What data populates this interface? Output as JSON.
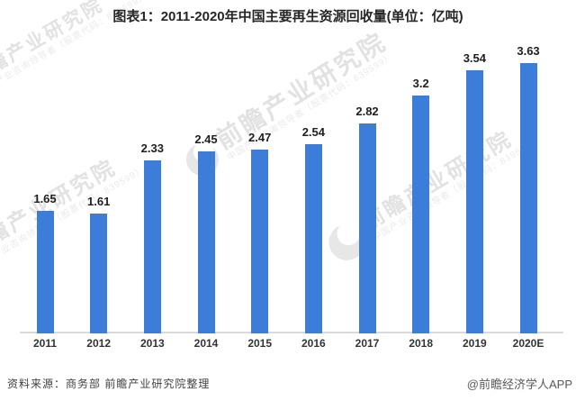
{
  "title": "图表1：2011-2020年中国主要再生资源回收量(单位：亿吨)",
  "chart_data": {
    "type": "bar",
    "title": "图表1：2011-2020年中国主要再生资源回收量(单位：亿吨)",
    "unit": "亿吨",
    "categories": [
      "2011",
      "2012",
      "2013",
      "2014",
      "2015",
      "2016",
      "2017",
      "2018",
      "2019",
      "2020E"
    ],
    "values": [
      1.65,
      1.61,
      2.33,
      2.45,
      2.47,
      2.54,
      2.82,
      3.2,
      3.54,
      3.63
    ],
    "value_labels": [
      "1.65",
      "1.61",
      "2.33",
      "2.45",
      "2.47",
      "2.54",
      "2.82",
      "3.2",
      "3.54",
      "3.63"
    ],
    "series_name": "主要再生资源回收量",
    "xlabel": "",
    "ylabel": "",
    "ylim": [
      0,
      4
    ],
    "grid": false,
    "legend_position": "none",
    "data_labels_position": "above-bars",
    "bar_color": "#3C7DD9",
    "axis_line_color": "#dadada"
  },
  "watermark": {
    "brand": "前瞻产业研究院",
    "sub": "中国产业咨询领导者（股票代码：839599）"
  },
  "footer": {
    "source": "资料来源：商务部 前瞻产业研究院整理",
    "credit": "@前瞻经济学人APP"
  }
}
